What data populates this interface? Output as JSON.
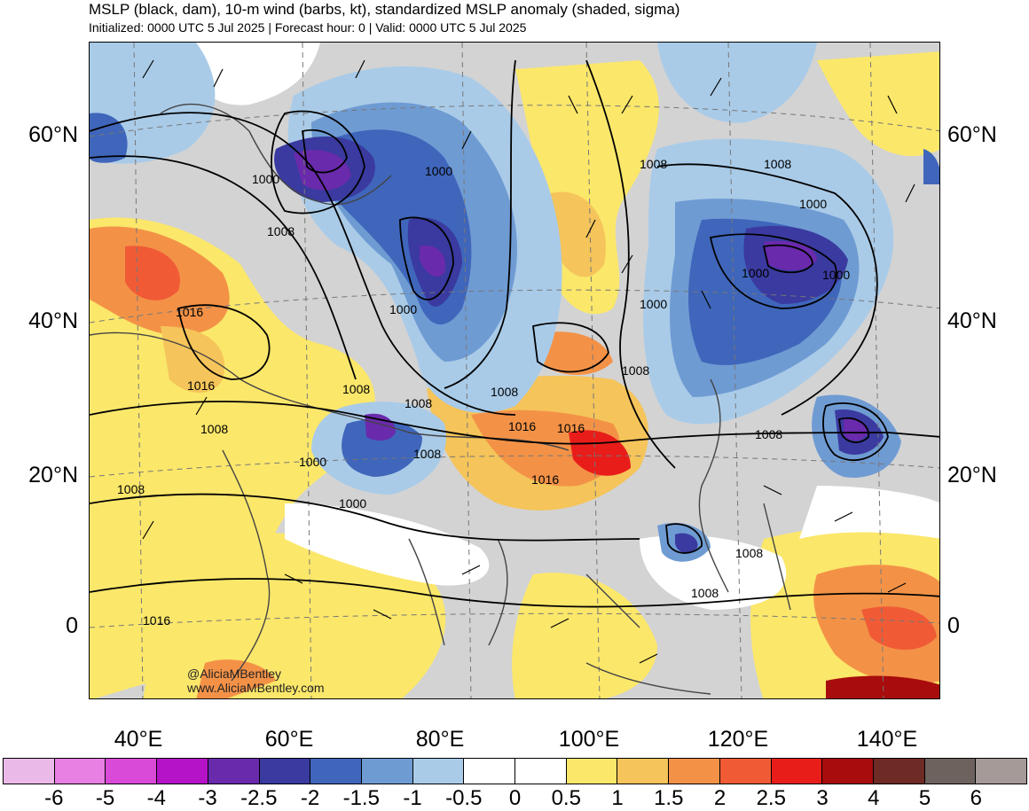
{
  "title": {
    "line1": "MSLP (black, dam), 10-m wind (barbs, kt), standardized MSLP anomaly (shaded, sigma)",
    "line2": "Initialized: 0000 UTC 5 Jul 2025 | Forecast hour: 0 | Valid: 0000 UTC 5 Jul 2025"
  },
  "map": {
    "lat_labels": [
      "60°N",
      "40°N",
      "20°N",
      "0"
    ],
    "lon_labels": [
      "40°E",
      "60°E",
      "80°E",
      "100°E",
      "120°E",
      "140°E"
    ],
    "isobar_labels": [
      "1000",
      "1000",
      "1000",
      "1008",
      "1008",
      "1008",
      "1000",
      "1000",
      "1000",
      "1016",
      "1016",
      "1008",
      "1008",
      "1008",
      "1008",
      "1016",
      "1016",
      "1000",
      "1008",
      "1000",
      "1008",
      "1008",
      "1000",
      "1008",
      "1008",
      "1008",
      "1016",
      "1016"
    ],
    "credit_line1": "@AliciaMBentley",
    "credit_line2": "www.AliciaMBentley.com"
  },
  "colorbar": {
    "colors": [
      "#ebb9e8",
      "#e87fe2",
      "#d94ad8",
      "#b413c8",
      "#6a2aac",
      "#3a3aa0",
      "#3f66bb",
      "#6f9bd3",
      "#a9cbe8",
      "#ffffff",
      "#ffffff",
      "#fbe76a",
      "#f5c45a",
      "#f39247",
      "#f05b36",
      "#e81d1a",
      "#a80c0c",
      "#6e2a24",
      "#6e625f",
      "#a59a98"
    ],
    "labels": [
      "-6",
      "-5",
      "-4",
      "-3",
      "-2.5",
      "-2",
      "-1.5",
      "-1",
      "-0.5",
      "0",
      "0.5",
      "1",
      "1.5",
      "2",
      "2.5",
      "3",
      "4",
      "5",
      "6"
    ]
  }
}
